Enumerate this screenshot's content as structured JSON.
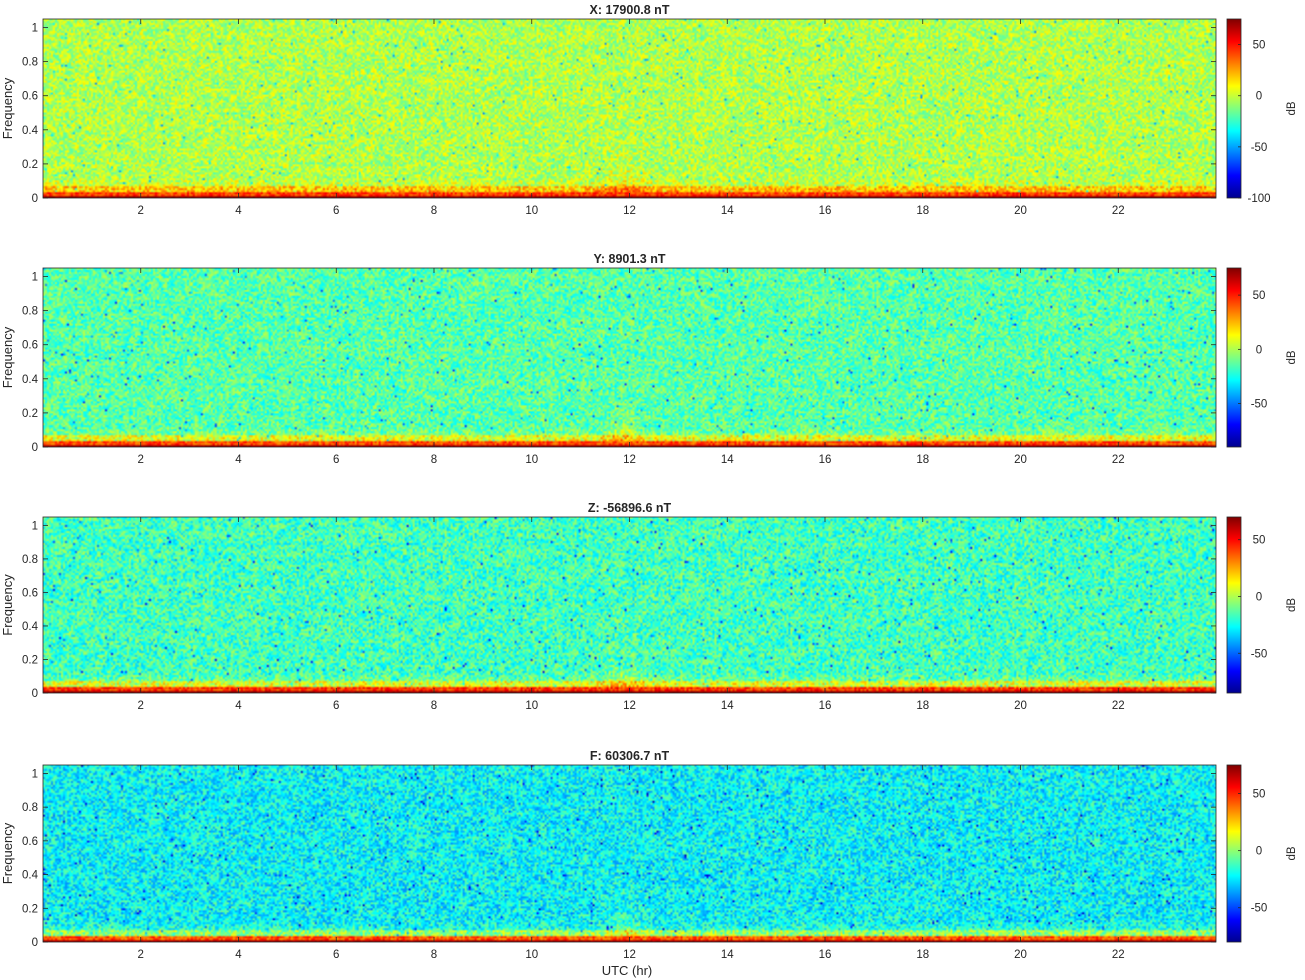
{
  "figure": {
    "xlabel": "UTC (hr)",
    "colormap": "jet",
    "colormap_stops": [
      "#00008f",
      "#0000ff",
      "#00ffff",
      "#ffff00",
      "#ff0000",
      "#800000"
    ]
  },
  "chart_data": [
    {
      "type": "heatmap",
      "title": "X: 17900.8 nT",
      "xlabel": "",
      "ylabel": "Frequency",
      "x_range": [
        0,
        24
      ],
      "xticks": [
        2,
        4,
        6,
        8,
        10,
        12,
        14,
        16,
        18,
        20,
        22
      ],
      "ylim": [
        0,
        1.05
      ],
      "yticks": [
        0,
        0.2,
        0.4,
        0.6,
        0.8,
        1
      ],
      "colorbar": {
        "label": "dB",
        "limits": [
          -100,
          75
        ],
        "ticks": [
          -100,
          -50,
          0,
          50
        ]
      },
      "background_db": -4,
      "low_freq_db": 68
    },
    {
      "type": "heatmap",
      "title": "Y: 8901.3 nT",
      "xlabel": "",
      "ylabel": "Frequency",
      "x_range": [
        0,
        24
      ],
      "xticks": [
        2,
        4,
        6,
        8,
        10,
        12,
        14,
        16,
        18,
        20,
        22
      ],
      "ylim": [
        0,
        1.05
      ],
      "yticks": [
        0,
        0.2,
        0.4,
        0.6,
        0.8,
        1
      ],
      "colorbar": {
        "label": "dB",
        "limits": [
          -90,
          75
        ],
        "ticks": [
          -50,
          0,
          50
        ]
      },
      "background_db": -14,
      "low_freq_db": 66
    },
    {
      "type": "heatmap",
      "title": "Z: -56896.6 nT",
      "xlabel": "",
      "ylabel": "Frequency",
      "x_range": [
        0,
        24
      ],
      "xticks": [
        2,
        4,
        6,
        8,
        10,
        12,
        14,
        16,
        18,
        20,
        22
      ],
      "ylim": [
        0,
        1.05
      ],
      "yticks": [
        0,
        0.2,
        0.4,
        0.6,
        0.8,
        1
      ],
      "colorbar": {
        "label": "dB",
        "limits": [
          -85,
          70
        ],
        "ticks": [
          -50,
          0,
          50
        ]
      },
      "background_db": -17,
      "low_freq_db": 62
    },
    {
      "type": "heatmap",
      "title": "F: 60306.7 nT",
      "xlabel": "UTC (hr)",
      "ylabel": "Frequency",
      "x_range": [
        0,
        24
      ],
      "xticks": [
        2,
        4,
        6,
        8,
        10,
        12,
        14,
        16,
        18,
        20,
        22
      ],
      "ylim": [
        0,
        1.05
      ],
      "yticks": [
        0,
        0.2,
        0.4,
        0.6,
        0.8,
        1
      ],
      "colorbar": {
        "label": "dB",
        "limits": [
          -80,
          75
        ],
        "ticks": [
          -50,
          0,
          50
        ]
      },
      "background_db": -22,
      "low_freq_db": 64
    }
  ]
}
